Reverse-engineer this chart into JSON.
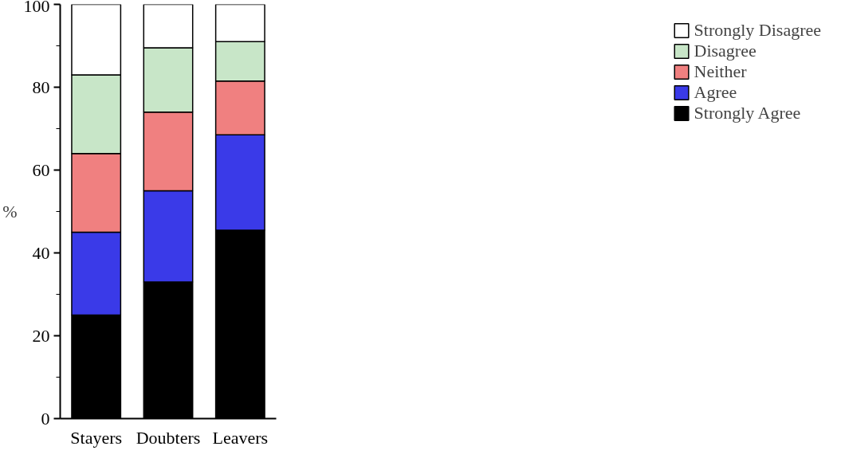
{
  "chart_data": {
    "type": "bar",
    "stacked": true,
    "ylabel": "%",
    "categories": [
      "Stayers",
      "Doubters",
      "Leavers"
    ],
    "series": [
      {
        "name": "Strongly Agree",
        "color": "#000000",
        "values": [
          25,
          33,
          45.5
        ]
      },
      {
        "name": "Agree",
        "color": "#3a3ae8",
        "values": [
          20,
          22,
          23
        ]
      },
      {
        "name": "Neither",
        "color": "#f08080",
        "values": [
          19,
          19,
          13
        ]
      },
      {
        "name": "Disagree",
        "color": "#c8e6c8",
        "values": [
          19,
          15.5,
          9.5
        ]
      },
      {
        "name": "Strongly Disagree",
        "color": "#ffffff",
        "values": [
          17,
          10.5,
          9
        ]
      }
    ],
    "ylim": [
      0,
      100
    ],
    "yticks": [
      0,
      20,
      40,
      60,
      80,
      100
    ],
    "grid": false,
    "legend": "right"
  }
}
